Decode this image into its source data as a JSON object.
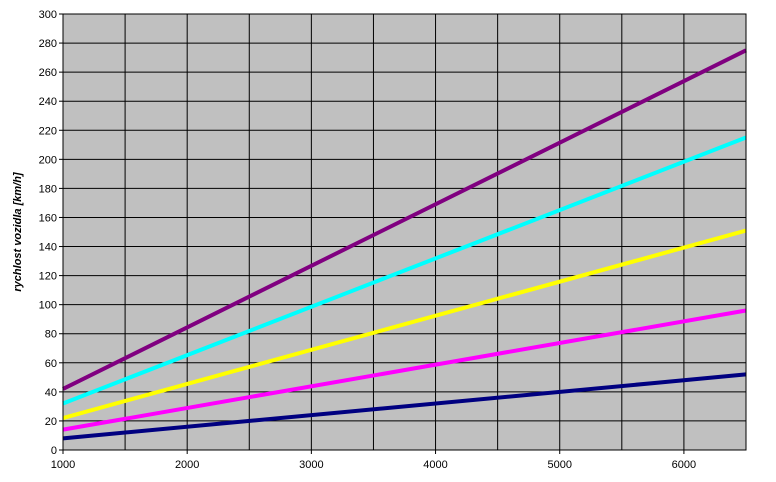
{
  "chart_data": {
    "type": "line",
    "title": "",
    "xlabel": "",
    "ylabel": "rychlost vozidla [km/h]",
    "xlim": [
      1000,
      6500
    ],
    "ylim": [
      0,
      300
    ],
    "x_ticks": [
      1000,
      2000,
      3000,
      4000,
      5000,
      6000
    ],
    "y_ticks": [
      0,
      20,
      40,
      60,
      80,
      100,
      120,
      140,
      160,
      180,
      200,
      220,
      240,
      260,
      280,
      300
    ],
    "grid": true,
    "legend": "none",
    "plot_background": "#c0c0c0",
    "series": [
      {
        "color": "#000080",
        "x": [
          1000,
          6500
        ],
        "y": [
          8,
          52
        ]
      },
      {
        "color": "#ff00ff",
        "x": [
          1000,
          6500
        ],
        "y": [
          14,
          96
        ]
      },
      {
        "color": "#ffff00",
        "x": [
          1000,
          6500
        ],
        "y": [
          22,
          151
        ]
      },
      {
        "color": "#00ffff",
        "x": [
          1000,
          6500
        ],
        "y": [
          32,
          215
        ]
      },
      {
        "color": "#800080",
        "x": [
          1000,
          6500
        ],
        "y": [
          42,
          275
        ]
      }
    ]
  }
}
